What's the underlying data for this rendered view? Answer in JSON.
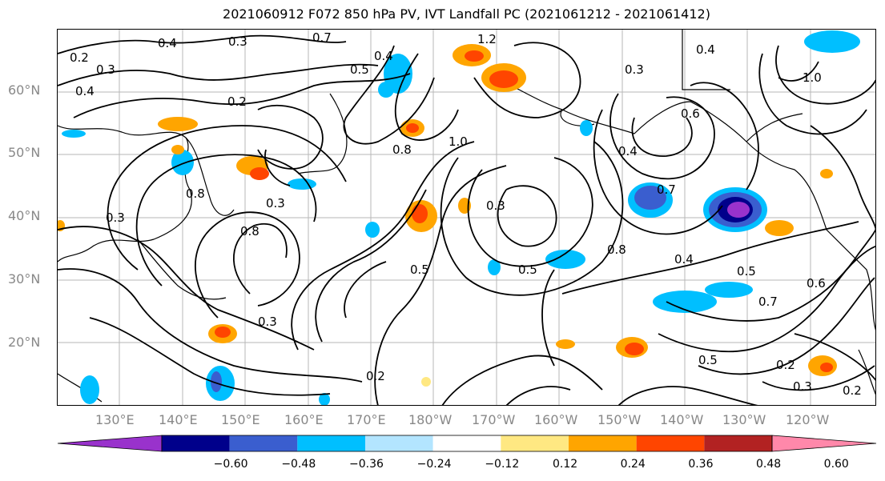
{
  "title": "2021060912 F072 850 hPa PV, IVT Landfall PC (2021061212 - 2021061412)",
  "lat_labels": [
    "60°N",
    "50°N",
    "40°N",
    "30°N",
    "20°N"
  ],
  "lon_labels": [
    "130°E",
    "140°E",
    "150°E",
    "160°E",
    "170°E",
    "180°W",
    "170°W",
    "160°W",
    "150°W",
    "140°W",
    "130°W",
    "120°W"
  ],
  "colorbar": {
    "ticks": [
      "−0.60",
      "−0.48",
      "−0.36",
      "−0.24",
      "−0.12",
      "0.12",
      "0.24",
      "0.36",
      "0.48",
      "0.60"
    ],
    "colors": [
      "#9932cc",
      "#00008b",
      "#3a5ecf",
      "#00bfff",
      "#b3e5ff",
      "#ffffff",
      "#ffe882",
      "#ffa500",
      "#ff4500",
      "#b22222",
      "#ff88aa"
    ]
  },
  "contour_labels": [
    "0.2",
    "0.4",
    "0.3",
    "0.7",
    "0.4",
    "1.2",
    "0.3",
    "0.4",
    "0.4",
    "0.2",
    "0.5",
    "0.3",
    "0.6",
    "0.4",
    "1.0",
    "0.8",
    "0.8",
    "0.7",
    "0.5",
    "0.5",
    "0.6",
    "0.7",
    "0.5",
    "0.3",
    "0.2",
    "0.5",
    "0.2",
    "0.3",
    "0.2",
    "0.3",
    "0.8",
    "0.3",
    "0.4",
    "0.3",
    "1.0",
    "0.8"
  ]
}
